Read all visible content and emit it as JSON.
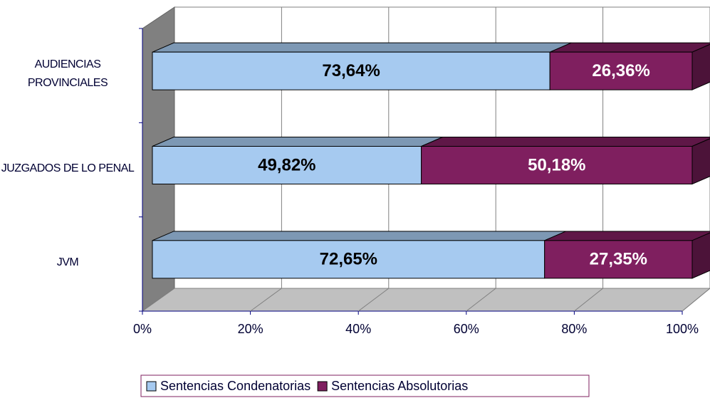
{
  "chart_data": {
    "type": "bar",
    "orientation": "horizontal",
    "stacked": true,
    "categories": [
      "AUDIENCIAS PROVINCIALES",
      "JUZGADOS DE LO PENAL",
      "JVM"
    ],
    "series": [
      {
        "name": "Sentencias Condenatorias",
        "color": "#a6caf0",
        "values": [
          73.64,
          49.82,
          72.65
        ],
        "value_labels": [
          "73,64%",
          "49,82%",
          "72,65%"
        ]
      },
      {
        "name": "Sentencias Absolutorias",
        "color": "#7f1f5f",
        "values": [
          26.36,
          50.18,
          27.35
        ],
        "value_labels": [
          "26,36%",
          "50,18%",
          "27,35%"
        ]
      }
    ],
    "xlim": [
      0,
      100
    ],
    "xticks": [
      {
        "value": 0,
        "label": "0%"
      },
      {
        "value": 20,
        "label": "20%"
      },
      {
        "value": 40,
        "label": "40%"
      },
      {
        "value": 60,
        "label": "60%"
      },
      {
        "value": 80,
        "label": "80%"
      },
      {
        "value": 100,
        "label": "100%"
      }
    ],
    "grid": true,
    "legend": "bottom"
  }
}
